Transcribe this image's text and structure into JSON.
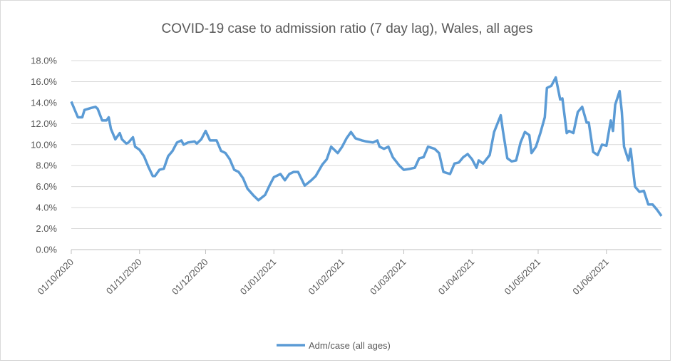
{
  "chart_data": {
    "type": "line",
    "title": "COVID-19 case to admission ratio (7 day lag), Wales, all ages",
    "x": [
      "2020-10-01",
      "2020-10-04",
      "2020-10-06",
      "2020-10-07",
      "2020-10-10",
      "2020-10-12",
      "2020-10-13",
      "2020-10-15",
      "2020-10-17",
      "2020-10-18",
      "2020-10-19",
      "2020-10-21",
      "2020-10-23",
      "2020-10-24",
      "2020-10-26",
      "2020-10-27",
      "2020-10-29",
      "2020-10-30",
      "2020-11-01",
      "2020-11-03",
      "2020-11-05",
      "2020-11-07",
      "2020-11-08",
      "2020-11-10",
      "2020-11-12",
      "2020-11-14",
      "2020-11-16",
      "2020-11-18",
      "2020-11-20",
      "2020-11-21",
      "2020-11-23",
      "2020-11-26",
      "2020-11-27",
      "2020-11-29",
      "2020-12-01",
      "2020-12-03",
      "2020-12-06",
      "2020-12-08",
      "2020-12-10",
      "2020-12-12",
      "2020-12-14",
      "2020-12-16",
      "2020-12-18",
      "2020-12-20",
      "2020-12-23",
      "2020-12-25",
      "2020-12-28",
      "2020-12-30",
      "2021-01-01",
      "2021-01-04",
      "2021-01-06",
      "2021-01-08",
      "2021-01-10",
      "2021-01-12",
      "2021-01-15",
      "2021-01-18",
      "2021-01-20",
      "2021-01-23",
      "2021-01-25",
      "2021-01-27",
      "2021-01-30",
      "2021-02-01",
      "2021-02-03",
      "2021-02-05",
      "2021-02-07",
      "2021-02-10",
      "2021-02-12",
      "2021-02-15",
      "2021-02-17",
      "2021-02-18",
      "2021-02-20",
      "2021-02-22",
      "2021-02-24",
      "2021-02-27",
      "2021-03-01",
      "2021-03-04",
      "2021-03-06",
      "2021-03-08",
      "2021-03-10",
      "2021-03-12",
      "2021-03-15",
      "2021-03-17",
      "2021-03-19",
      "2021-03-22",
      "2021-03-24",
      "2021-03-26",
      "2021-03-28",
      "2021-03-30",
      "2021-04-01",
      "2021-04-03",
      "2021-04-04",
      "2021-04-06",
      "2021-04-09",
      "2021-04-11",
      "2021-04-14",
      "2021-04-15",
      "2021-04-17",
      "2021-04-19",
      "2021-04-21",
      "2021-04-23",
      "2021-04-25",
      "2021-04-27",
      "2021-04-28",
      "2021-04-30",
      "2021-05-02",
      "2021-05-04",
      "2021-05-05",
      "2021-05-07",
      "2021-05-09",
      "2021-05-11",
      "2021-05-12",
      "2021-05-14",
      "2021-05-15",
      "2021-05-17",
      "2021-05-19",
      "2021-05-21",
      "2021-05-23",
      "2021-05-24",
      "2021-05-26",
      "2021-05-28",
      "2021-05-30",
      "2021-06-01",
      "2021-06-03",
      "2021-06-04",
      "2021-06-05",
      "2021-06-07",
      "2021-06-08",
      "2021-06-09",
      "2021-06-11",
      "2021-06-12",
      "2021-06-14",
      "2021-06-16",
      "2021-06-18",
      "2021-06-20",
      "2021-06-22",
      "2021-06-24",
      "2021-06-26"
    ],
    "series": [
      {
        "name": "Adm/case (all ages)",
        "color": "#5b9bd5",
        "values": [
          14.1,
          12.6,
          12.6,
          13.3,
          13.5,
          13.6,
          13.4,
          12.3,
          12.3,
          12.6,
          11.5,
          10.5,
          11.1,
          10.5,
          10.1,
          10.2,
          10.7,
          9.8,
          9.5,
          8.9,
          7.9,
          7.0,
          7.0,
          7.6,
          7.7,
          8.9,
          9.4,
          10.2,
          10.4,
          10.0,
          10.2,
          10.3,
          10.1,
          10.5,
          11.3,
          10.4,
          10.4,
          9.4,
          9.2,
          8.6,
          7.6,
          7.4,
          6.8,
          5.8,
          5.1,
          4.7,
          5.2,
          6.1,
          6.9,
          7.2,
          6.6,
          7.2,
          7.4,
          7.4,
          6.1,
          6.6,
          7.0,
          8.1,
          8.6,
          9.8,
          9.2,
          9.8,
          10.6,
          11.2,
          10.6,
          10.4,
          10.3,
          10.2,
          10.4,
          9.8,
          9.6,
          9.8,
          8.8,
          8.0,
          7.6,
          7.7,
          7.8,
          8.7,
          8.8,
          9.8,
          9.6,
          9.2,
          7.4,
          7.2,
          8.2,
          8.3,
          8.8,
          9.1,
          8.6,
          7.8,
          8.5,
          8.2,
          9.0,
          11.2,
          12.8,
          11.3,
          8.7,
          8.4,
          8.5,
          10.2,
          11.2,
          10.9,
          9.2,
          9.8,
          11.1,
          12.6,
          15.4,
          15.6,
          16.4,
          14.3,
          14.4,
          11.1,
          11.3,
          11.1,
          13.1,
          13.6,
          12.1,
          12.1,
          9.3,
          9.0,
          10.0,
          9.9,
          12.3,
          11.3,
          13.8,
          15.1,
          13.1,
          9.8,
          8.5,
          9.6,
          6.0,
          5.5,
          5.6,
          4.3,
          4.3,
          3.8,
          3.2
        ]
      }
    ],
    "xlim": [
      "2020-10-01",
      "2021-06-26"
    ],
    "xticks": [
      {
        "value": "2020-10-01",
        "label": "01/10/2020"
      },
      {
        "value": "2020-11-01",
        "label": "01/11/2020"
      },
      {
        "value": "2020-12-01",
        "label": "01/12/2020"
      },
      {
        "value": "2021-01-01",
        "label": "01/01/2021"
      },
      {
        "value": "2021-02-01",
        "label": "01/02/2021"
      },
      {
        "value": "2021-03-01",
        "label": "01/03/2021"
      },
      {
        "value": "2021-04-01",
        "label": "01/04/2021"
      },
      {
        "value": "2021-05-01",
        "label": "01/05/2021"
      },
      {
        "value": "2021-06-01",
        "label": "01/06/2021"
      }
    ],
    "ylim": [
      0,
      18
    ],
    "yticks": [
      {
        "value": 0,
        "label": "0.0%"
      },
      {
        "value": 2,
        "label": "2.0%"
      },
      {
        "value": 4,
        "label": "4.0%"
      },
      {
        "value": 6,
        "label": "6.0%"
      },
      {
        "value": 8,
        "label": "8.0%"
      },
      {
        "value": 10,
        "label": "10.0%"
      },
      {
        "value": 12,
        "label": "12.0%"
      },
      {
        "value": 14,
        "label": "14.0%"
      },
      {
        "value": 16,
        "label": "16.0%"
      },
      {
        "value": 18,
        "label": "18.0%"
      }
    ],
    "grid": true,
    "legend": "bottom"
  }
}
